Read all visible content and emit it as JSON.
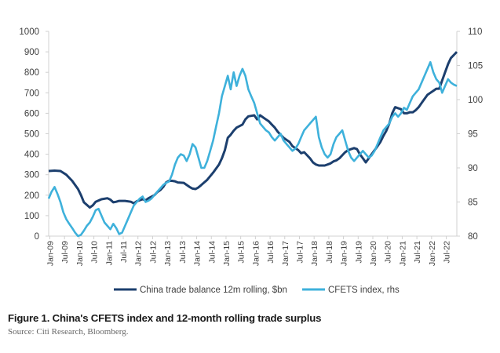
{
  "figure": {
    "caption": "Figure 1. China's CFETS index and 12-month rolling trade surplus",
    "source": "Source: Citi Research, Bloomberg."
  },
  "chart_data": {
    "type": "line",
    "x_ticks": [
      "Jan-09",
      "Jul-09",
      "Jan-10",
      "Jul-10",
      "Jan-11",
      "Jul-11",
      "Jan-12",
      "Jul-12",
      "Jan-13",
      "Jul-13",
      "Jan-14",
      "Jul-14",
      "Jan-15",
      "Jul-15",
      "Jan-16",
      "Jul-16",
      "Jan-17",
      "Jul-17",
      "Jan-18",
      "Jul-18",
      "Jan-19",
      "Jul-19",
      "Jan-20",
      "Jul-20",
      "Jan-21",
      "Jul-21",
      "Jan-22",
      "Jul-22"
    ],
    "y_left": {
      "min": 0,
      "max": 1000,
      "ticks": [
        0,
        100,
        200,
        300,
        400,
        500,
        600,
        700,
        800,
        900,
        1000
      ]
    },
    "y_right": {
      "min": 80,
      "max": 110,
      "ticks": [
        80,
        85,
        90,
        95,
        100,
        105,
        110
      ]
    },
    "legend_position": "bottom",
    "series": [
      {
        "name": "China trade balance 12m rolling, $bn",
        "axis": "left",
        "color": "#1c3f6e",
        "points": [
          [
            0,
            318
          ],
          [
            1,
            320
          ],
          [
            2,
            318
          ],
          [
            3,
            300
          ],
          [
            4,
            270
          ],
          [
            5,
            230
          ],
          [
            5.5,
            200
          ],
          [
            6,
            165
          ],
          [
            7,
            140
          ],
          [
            7.5,
            150
          ],
          [
            8,
            168
          ],
          [
            9,
            180
          ],
          [
            10,
            185
          ],
          [
            10.5,
            178
          ],
          [
            11,
            165
          ],
          [
            11.5,
            168
          ],
          [
            12,
            172
          ],
          [
            13,
            172
          ],
          [
            14,
            168
          ],
          [
            14.5,
            160
          ],
          [
            15,
            170
          ],
          [
            16,
            180
          ],
          [
            16.5,
            175
          ],
          [
            17,
            185
          ],
          [
            18,
            200
          ],
          [
            18.5,
            215
          ],
          [
            19,
            225
          ],
          [
            19.5,
            240
          ],
          [
            20,
            262
          ],
          [
            20.5,
            270
          ],
          [
            21,
            270
          ],
          [
            21.5,
            268
          ],
          [
            22,
            262
          ],
          [
            23,
            260
          ],
          [
            24,
            240
          ],
          [
            24.5,
            232
          ],
          [
            25,
            230
          ],
          [
            25.5,
            238
          ],
          [
            26,
            250
          ],
          [
            27,
            275
          ],
          [
            28,
            310
          ],
          [
            29,
            350
          ],
          [
            29.5,
            380
          ],
          [
            30,
            420
          ],
          [
            30.5,
            480
          ],
          [
            31,
            495
          ],
          [
            31.5,
            515
          ],
          [
            32,
            530
          ],
          [
            33,
            545
          ],
          [
            33.5,
            570
          ],
          [
            34,
            585
          ],
          [
            35,
            590
          ],
          [
            35.5,
            570
          ],
          [
            36,
            590
          ],
          [
            36.5,
            580
          ],
          [
            37,
            570
          ],
          [
            37.5,
            560
          ],
          [
            38,
            545
          ],
          [
            38.5,
            530
          ],
          [
            39,
            510
          ],
          [
            39.5,
            495
          ],
          [
            40,
            480
          ],
          [
            40.5,
            470
          ],
          [
            41,
            460
          ],
          [
            41.5,
            440
          ],
          [
            42,
            430
          ],
          [
            42.5,
            420
          ],
          [
            43,
            405
          ],
          [
            43.5,
            410
          ],
          [
            44,
            395
          ],
          [
            44.5,
            380
          ],
          [
            45,
            360
          ],
          [
            45.5,
            350
          ],
          [
            46,
            345
          ],
          [
            46.5,
            345
          ],
          [
            47,
            345
          ],
          [
            47.5,
            350
          ],
          [
            48,
            355
          ],
          [
            48.5,
            365
          ],
          [
            49,
            370
          ],
          [
            49.5,
            380
          ],
          [
            50,
            395
          ],
          [
            50.5,
            410
          ],
          [
            51,
            420
          ],
          [
            51.5,
            425
          ],
          [
            52,
            430
          ],
          [
            52.5,
            425
          ],
          [
            53,
            400
          ],
          [
            53.5,
            380
          ],
          [
            54,
            360
          ],
          [
            54.5,
            380
          ],
          [
            55,
            400
          ],
          [
            55.5,
            420
          ],
          [
            56,
            440
          ],
          [
            56.5,
            460
          ],
          [
            57,
            490
          ],
          [
            57.5,
            515
          ],
          [
            58,
            550
          ],
          [
            58.5,
            600
          ],
          [
            59,
            630
          ],
          [
            59.5,
            625
          ],
          [
            60,
            620
          ],
          [
            60.5,
            600
          ],
          [
            61,
            600
          ],
          [
            61.5,
            605
          ],
          [
            62,
            605
          ],
          [
            62.5,
            615
          ],
          [
            63,
            630
          ],
          [
            63.5,
            650
          ],
          [
            64,
            670
          ],
          [
            64.5,
            690
          ],
          [
            65,
            700
          ],
          [
            65.5,
            710
          ],
          [
            66,
            720
          ],
          [
            66.5,
            720
          ],
          [
            67,
            760
          ],
          [
            67.5,
            800
          ],
          [
            68,
            840
          ],
          [
            68.5,
            870
          ],
          [
            69,
            885
          ],
          [
            69.5,
            900
          ]
        ]
      },
      {
        "name": "CFETS index, rhs",
        "axis": "right",
        "color": "#3eb1db",
        "points": [
          [
            0,
            85.5
          ],
          [
            0.5,
            86.5
          ],
          [
            1,
            87.2
          ],
          [
            1.5,
            86.2
          ],
          [
            2,
            85.0
          ],
          [
            2.5,
            83.5
          ],
          [
            3,
            82.5
          ],
          [
            3.5,
            81.8
          ],
          [
            4,
            81.2
          ],
          [
            4.5,
            80.5
          ],
          [
            5,
            80.0
          ],
          [
            5.5,
            80.2
          ],
          [
            6,
            80.8
          ],
          [
            6.5,
            81.5
          ],
          [
            7,
            82.0
          ],
          [
            7.5,
            82.8
          ],
          [
            8,
            83.8
          ],
          [
            8.5,
            84.0
          ],
          [
            9,
            83.0
          ],
          [
            9.5,
            82.0
          ],
          [
            10,
            81.5
          ],
          [
            10.5,
            81.0
          ],
          [
            11,
            81.8
          ],
          [
            11.5,
            81.2
          ],
          [
            12,
            80.3
          ],
          [
            12.5,
            80.5
          ],
          [
            13,
            81.5
          ],
          [
            13.5,
            82.5
          ],
          [
            14,
            83.5
          ],
          [
            14.5,
            84.5
          ],
          [
            15,
            85.0
          ],
          [
            15.5,
            85.5
          ],
          [
            16,
            85.8
          ],
          [
            16.5,
            85.0
          ],
          [
            17,
            85.2
          ],
          [
            17.5,
            85.5
          ],
          [
            18,
            86.0
          ],
          [
            18.5,
            86.5
          ],
          [
            19,
            87.0
          ],
          [
            19.5,
            87.5
          ],
          [
            20,
            87.8
          ],
          [
            20.5,
            88.0
          ],
          [
            21,
            89.0
          ],
          [
            21.5,
            90.5
          ],
          [
            22,
            91.5
          ],
          [
            22.5,
            92.0
          ],
          [
            23,
            91.8
          ],
          [
            23.5,
            91.0
          ],
          [
            24,
            92.0
          ],
          [
            24.5,
            93.5
          ],
          [
            25,
            93.0
          ],
          [
            25.5,
            91.5
          ],
          [
            26,
            90.0
          ],
          [
            26.5,
            90.0
          ],
          [
            27,
            91.0
          ],
          [
            27.5,
            92.5
          ],
          [
            28,
            94.0
          ],
          [
            28.5,
            96.0
          ],
          [
            29,
            98.0
          ],
          [
            29.5,
            100.5
          ],
          [
            30,
            102.0
          ],
          [
            30.5,
            103.5
          ],
          [
            31,
            101.5
          ],
          [
            31.5,
            104.0
          ],
          [
            32,
            102.0
          ],
          [
            32.5,
            103.5
          ],
          [
            33,
            104.5
          ],
          [
            33.5,
            103.5
          ],
          [
            34,
            101.5
          ],
          [
            34.5,
            100.5
          ],
          [
            35,
            99.5
          ],
          [
            35.5,
            98.0
          ],
          [
            36,
            96.5
          ],
          [
            36.5,
            96.0
          ],
          [
            37,
            95.5
          ],
          [
            37.5,
            95.2
          ],
          [
            38,
            94.5
          ],
          [
            38.5,
            94.0
          ],
          [
            39,
            94.5
          ],
          [
            39.5,
            95.0
          ],
          [
            40,
            94.0
          ],
          [
            40.5,
            93.5
          ],
          [
            41,
            93.0
          ],
          [
            41.5,
            92.5
          ],
          [
            42,
            92.8
          ],
          [
            42.5,
            93.5
          ],
          [
            43,
            94.5
          ],
          [
            43.5,
            95.5
          ],
          [
            44,
            96.0
          ],
          [
            44.5,
            96.5
          ],
          [
            45,
            97.0
          ],
          [
            45.5,
            97.5
          ],
          [
            46,
            94.5
          ],
          [
            46.5,
            93.0
          ],
          [
            47,
            92.0
          ],
          [
            47.5,
            91.5
          ],
          [
            48,
            92.0
          ],
          [
            48.5,
            93.5
          ],
          [
            49,
            94.5
          ],
          [
            49.5,
            95.0
          ],
          [
            50,
            95.5
          ],
          [
            50.5,
            94.0
          ],
          [
            51,
            92.5
          ],
          [
            51.5,
            91.5
          ],
          [
            52,
            91.0
          ],
          [
            52.5,
            91.5
          ],
          [
            53,
            92.0
          ],
          [
            53.5,
            92.5
          ],
          [
            54,
            92.0
          ],
          [
            54.5,
            91.5
          ],
          [
            55,
            91.8
          ],
          [
            55.5,
            92.5
          ],
          [
            56,
            93.5
          ],
          [
            56.5,
            94.5
          ],
          [
            57,
            95.5
          ],
          [
            57.5,
            96.0
          ],
          [
            58,
            96.5
          ],
          [
            58.5,
            97.5
          ],
          [
            59,
            98.0
          ],
          [
            59.5,
            97.5
          ],
          [
            60,
            98.0
          ],
          [
            60.5,
            98.8
          ],
          [
            61,
            98.5
          ],
          [
            61.5,
            99.5
          ],
          [
            62,
            100.5
          ],
          [
            62.5,
            101.0
          ],
          [
            63,
            101.5
          ],
          [
            63.5,
            102.5
          ],
          [
            64,
            103.5
          ],
          [
            64.5,
            104.5
          ],
          [
            65,
            105.5
          ],
          [
            65.5,
            104.0
          ],
          [
            66,
            103.0
          ],
          [
            66.5,
            102.5
          ],
          [
            67,
            101.0
          ],
          [
            67.5,
            102.0
          ],
          [
            68,
            103.0
          ],
          [
            68.5,
            102.5
          ],
          [
            69,
            102.2
          ],
          [
            69.5,
            102.0
          ]
        ]
      }
    ]
  }
}
